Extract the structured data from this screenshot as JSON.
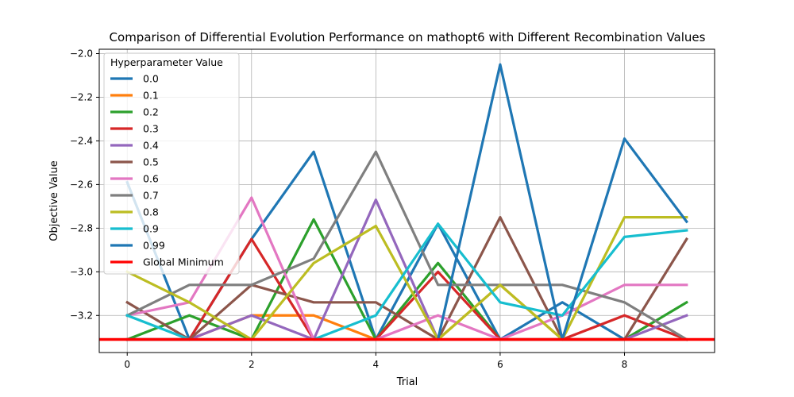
{
  "chart_data": {
    "type": "line",
    "title": "Comparison of Differential Evolution Performance on mathopt6 with Different Recombination Values",
    "xlabel": "Trial",
    "ylabel": "Objective Value",
    "xlim": [
      -0.45,
      9.45
    ],
    "ylim": [
      -3.37,
      -1.98
    ],
    "x_ticks": [
      0,
      2,
      4,
      6,
      8
    ],
    "y_ticks": [
      -3.2,
      -3.0,
      -2.8,
      -2.6,
      -2.4,
      -2.2,
      -2.0
    ],
    "y_tick_labels": [
      "−3.2",
      "−3.0",
      "−2.8",
      "−2.6",
      "−2.4",
      "−2.2",
      "−2.0"
    ],
    "grid": true,
    "legend_title": "Hyperparameter Value",
    "legend_position": "top-left",
    "x": [
      0,
      1,
      2,
      3,
      4,
      5,
      6,
      7,
      8,
      9
    ],
    "series": [
      {
        "name": "0.0",
        "color": "#1f77b4",
        "values": [
          -2.59,
          -3.31,
          -2.85,
          -2.45,
          -3.31,
          -2.78,
          -3.31,
          -3.14,
          -3.31,
          -3.31
        ]
      },
      {
        "name": "0.1",
        "color": "#ff7f0e",
        "values": [
          -3.31,
          -3.31,
          -3.2,
          -3.2,
          -3.31,
          -3.31,
          -3.06,
          -3.31,
          -3.31,
          -3.31
        ]
      },
      {
        "name": "0.2",
        "color": "#2ca02c",
        "values": [
          -3.31,
          -3.2,
          -3.31,
          -2.76,
          -3.31,
          -2.96,
          -3.31,
          -3.31,
          -3.31,
          -3.14
        ]
      },
      {
        "name": "0.3",
        "color": "#d62728",
        "values": [
          -3.31,
          -3.31,
          -2.85,
          -3.31,
          -3.31,
          -3.0,
          -3.31,
          -3.31,
          -3.2,
          -3.31
        ]
      },
      {
        "name": "0.4",
        "color": "#9467bd",
        "values": [
          -3.31,
          -3.31,
          -3.2,
          -3.31,
          -2.67,
          -3.31,
          -3.31,
          -3.31,
          -3.31,
          -3.2
        ]
      },
      {
        "name": "0.5",
        "color": "#8c564b",
        "values": [
          -3.14,
          -3.31,
          -3.06,
          -3.14,
          -3.14,
          -3.31,
          -2.75,
          -3.31,
          -3.31,
          -2.85
        ]
      },
      {
        "name": "0.6",
        "color": "#e377c2",
        "values": [
          -3.2,
          -3.14,
          -2.66,
          -3.31,
          -3.31,
          -3.2,
          -3.31,
          -3.2,
          -3.06,
          -3.06
        ]
      },
      {
        "name": "0.7",
        "color": "#7f7f7f",
        "values": [
          -3.2,
          -3.06,
          -3.06,
          -2.94,
          -2.45,
          -3.06,
          -3.06,
          -3.06,
          -3.14,
          -3.31
        ]
      },
      {
        "name": "0.8",
        "color": "#bcbd22",
        "values": [
          -3.0,
          -3.14,
          -3.31,
          -2.96,
          -2.79,
          -3.31,
          -3.06,
          -3.31,
          -2.75,
          -2.75
        ]
      },
      {
        "name": "0.9",
        "color": "#17becf",
        "values": [
          -3.2,
          -3.31,
          -3.31,
          -3.31,
          -3.2,
          -2.78,
          -3.14,
          -3.2,
          -2.84,
          -2.81
        ]
      },
      {
        "name": "0.99",
        "color": "#1f77b4",
        "values": [
          -3.31,
          -3.31,
          -3.31,
          -3.31,
          -3.31,
          -3.31,
          -2.05,
          -3.31,
          -2.39,
          -2.77
        ]
      }
    ],
    "reference_line": {
      "name": "Global Minimum",
      "color": "#ff0000",
      "value": -3.31
    }
  }
}
